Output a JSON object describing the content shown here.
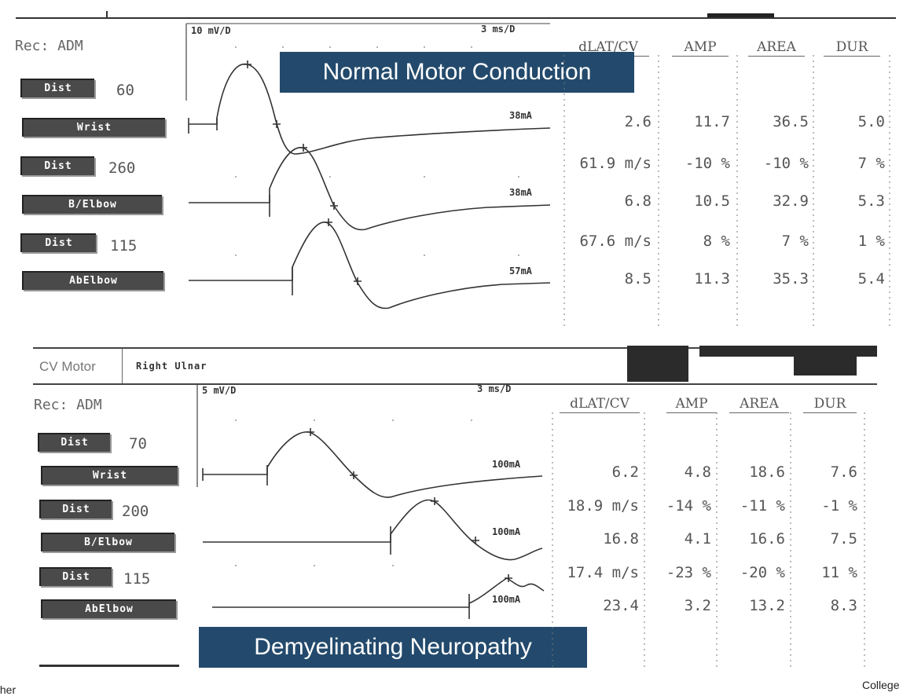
{
  "top": {
    "rec": "Rec: ADM",
    "scale_left": "10 mV/D",
    "scale_right": "3 ms/D",
    "banner": "Normal Motor Conduction",
    "buttons": [
      "Dist",
      "Wrist",
      "Dist",
      "B/Elbow",
      "Dist",
      "AbElbow"
    ],
    "distances": [
      "60",
      "260",
      "115"
    ],
    "currents": [
      "38mA",
      "38mA",
      "57mA"
    ],
    "headers": [
      "dLAT/CV",
      "AMP",
      "AREA",
      "DUR"
    ],
    "rows": [
      [
        "2.6",
        "11.7",
        "36.5",
        "5.0"
      ],
      [
        "61.9 m/s",
        "-10 %",
        "-10 %",
        "7 %"
      ],
      [
        "6.8",
        "10.5",
        "32.9",
        "5.3"
      ],
      [
        "67.6 m/s",
        "8 %",
        "7 %",
        "1 %"
      ],
      [
        "8.5",
        "11.3",
        "35.3",
        "5.4"
      ]
    ]
  },
  "bottom": {
    "cv_label": "CV Motor",
    "nerve": "Right Ulnar",
    "rec": "Rec: ADM",
    "scale_left": "5 mV/D",
    "scale_right": "3 ms/D",
    "banner": "Demyelinating Neuropathy",
    "buttons": [
      "Dist",
      "Wrist",
      "Dist",
      "B/Elbow",
      "Dist",
      "AbElbow"
    ],
    "distances": [
      "70",
      "200",
      "115"
    ],
    "currents": [
      "100mA",
      "100mA",
      "100mA"
    ],
    "headers": [
      "dLAT/CV",
      "AMP",
      "AREA",
      "DUR"
    ],
    "rows": [
      [
        "6.2",
        "4.8",
        "18.6",
        "7.6"
      ],
      [
        "18.9 m/s",
        "-14 %",
        "-11 %",
        "-1 %"
      ],
      [
        "16.8",
        "4.1",
        "16.6",
        "7.5"
      ],
      [
        "17.4 m/s",
        "-23 %",
        "-20 %",
        "11 %"
      ],
      [
        "23.4",
        "3.2",
        "13.2",
        "8.3"
      ]
    ]
  },
  "edge_left": "ther",
  "edge_right": "College"
}
